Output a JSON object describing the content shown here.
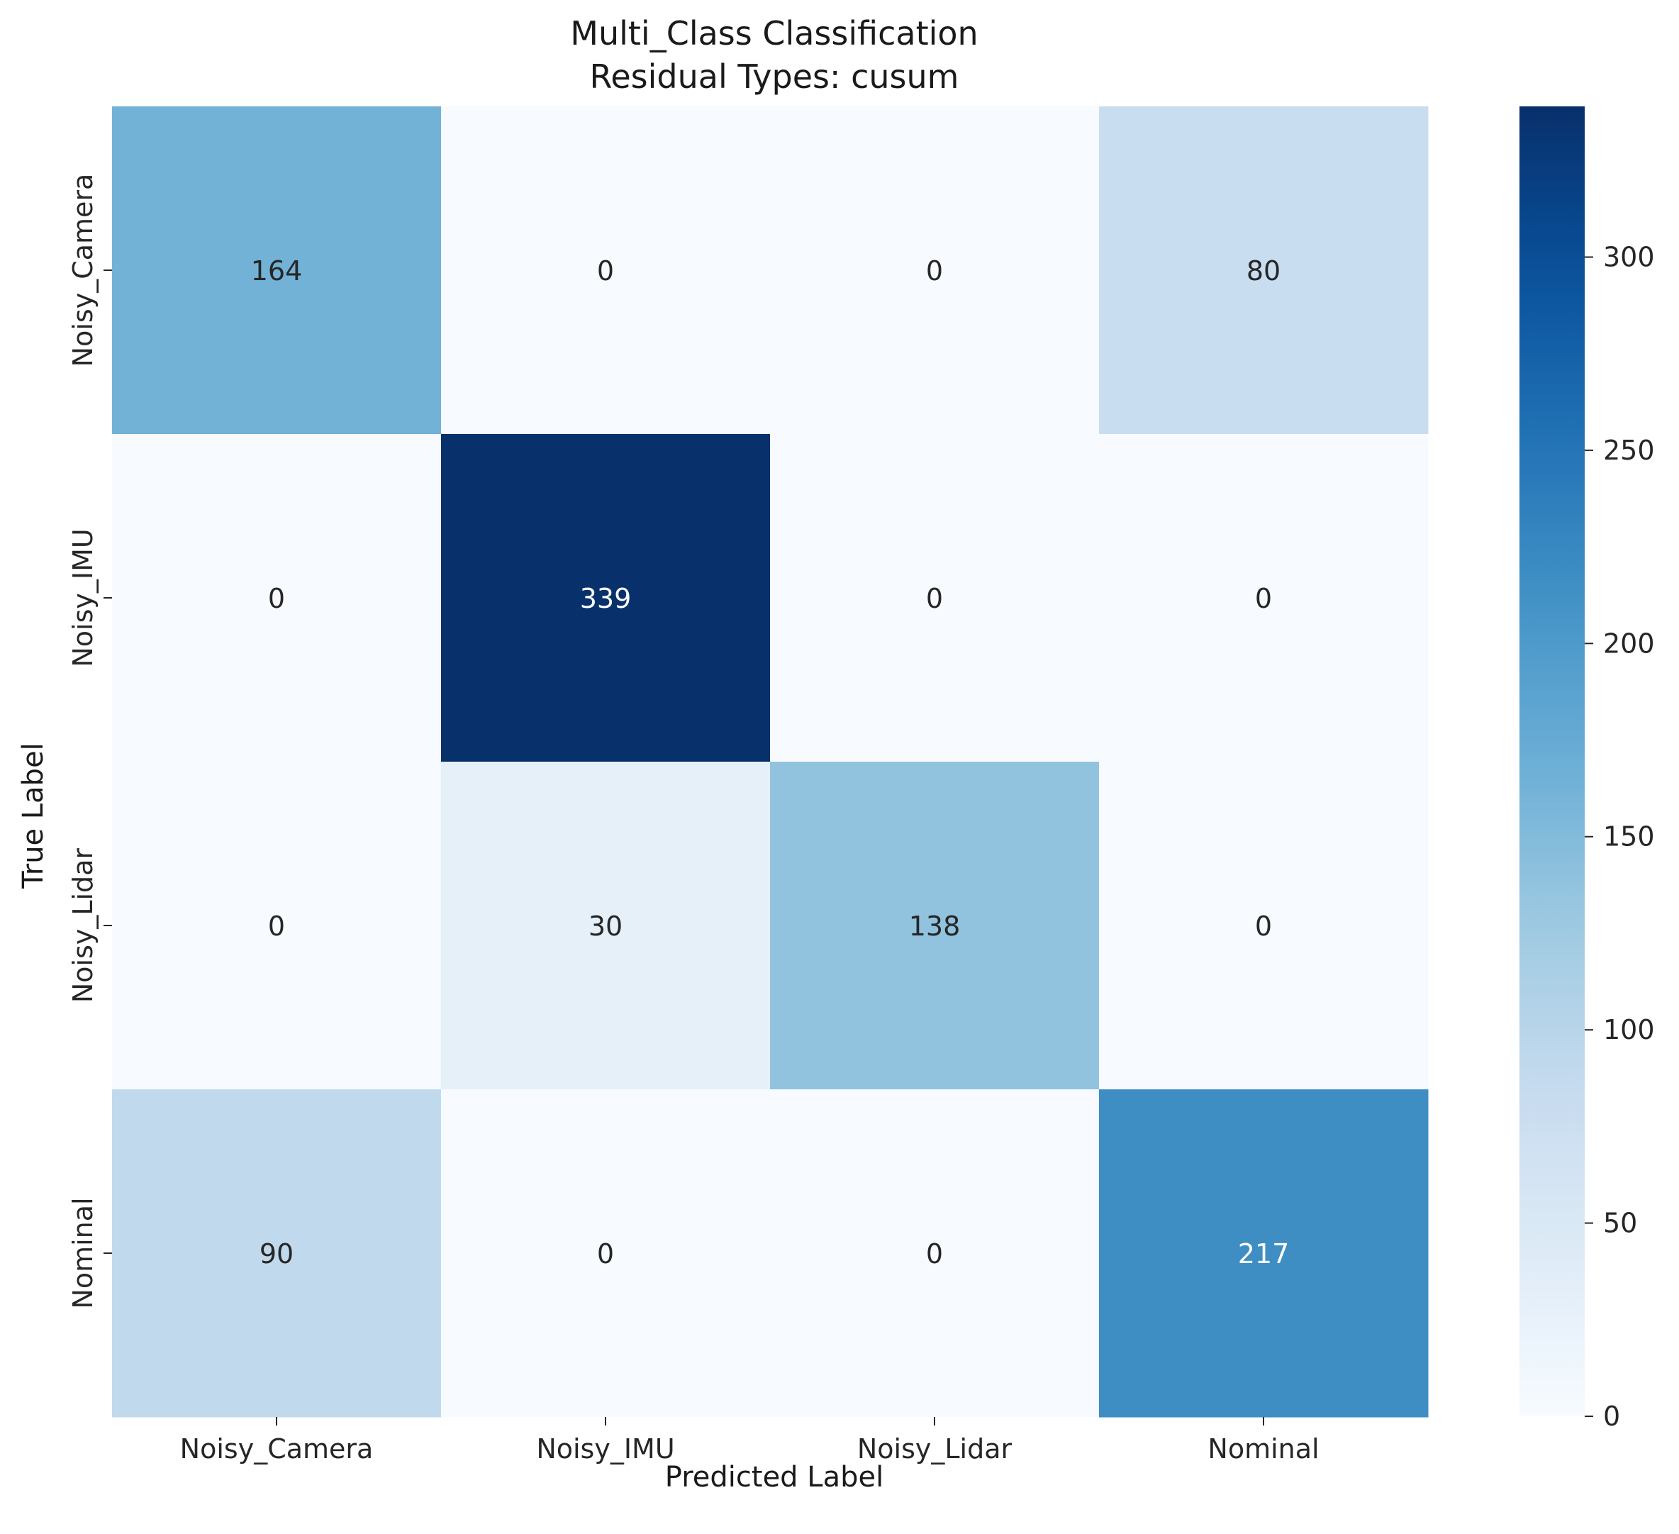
{
  "chart_data": {
    "type": "heatmap",
    "title": "Multi_Class Classification",
    "subtitle": "Residual Types: cusum",
    "xlabel": "Predicted Label",
    "ylabel": "True Label",
    "x_categories": [
      "Noisy_Camera",
      "Noisy_IMU",
      "Noisy_Lidar",
      "Nominal"
    ],
    "y_categories": [
      "Noisy_Camera",
      "Noisy_IMU",
      "Noisy_Lidar",
      "Nominal"
    ],
    "values": [
      [
        164,
        0,
        0,
        80
      ],
      [
        0,
        339,
        0,
        0
      ],
      [
        0,
        30,
        138,
        0
      ],
      [
        90,
        0,
        0,
        217
      ]
    ],
    "colormap": "Blues",
    "colorbar": {
      "min": 0,
      "max": 339,
      "ticks": [
        0,
        50,
        100,
        150,
        200,
        250,
        300
      ]
    },
    "colors": {
      "low": "#f7fbff",
      "high": "#08306b"
    }
  }
}
